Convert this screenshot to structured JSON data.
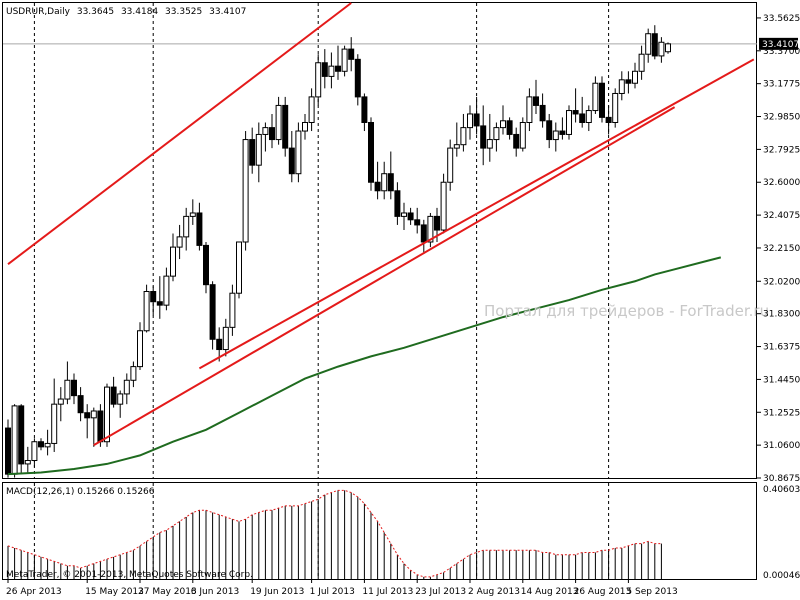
{
  "header": {
    "symbol": "USDRUR,Daily",
    "open": "33.3645",
    "high": "33.4184",
    "low": "33.3525",
    "close": "33.4107"
  },
  "watermark": "Портал для трейдеров - ForTrader.ru",
  "copyright": "MetaTrader, © 2001-2013, MetaQuotes Software Corp.",
  "current_price_label": "33.4107",
  "colors": {
    "channel": "#e41a1a",
    "moving_average": "#1f6b1f",
    "macd": "#000000",
    "signal": "#e41a1a",
    "grid_vertical": "#000000",
    "price_line": "#a8a8a8"
  },
  "chart_data": [
    {
      "type": "candlestick",
      "ylim": [
        30.8675,
        33.65
      ],
      "y_ticks": [
        "33.5625",
        "33.3700",
        "33.1775",
        "32.9850",
        "32.7925",
        "32.6000",
        "32.4075",
        "32.2150",
        "32.0200",
        "31.8300",
        "31.6375",
        "31.4450",
        "31.2525",
        "31.0600",
        "30.8675"
      ],
      "x_ticks": [
        "26 Apr 2013",
        "15 May 2013",
        "27 May 2013",
        "6 Jun 2013",
        "19 Jun 2013",
        "1 Jul 2013",
        "11 Jul 2013",
        "23 Jul 2013",
        "2 Aug 2013",
        "14 Aug 2013",
        "26 Aug 2013",
        "5 Sep 2013"
      ],
      "x_tick_bar_index": [
        0,
        12,
        20,
        28,
        37,
        46,
        54,
        62,
        70,
        78,
        86,
        94
      ],
      "gridline_bar_index": [
        4,
        22,
        47,
        71,
        91
      ],
      "candles": [
        {
          "o": 31.16,
          "h": 31.21,
          "l": 30.87,
          "c": 30.89
        },
        {
          "o": 30.89,
          "h": 31.3,
          "l": 30.87,
          "c": 31.29
        },
        {
          "o": 31.29,
          "h": 31.3,
          "l": 30.89,
          "c": 30.95
        },
        {
          "o": 30.95,
          "h": 31.05,
          "l": 30.9,
          "c": 30.97
        },
        {
          "o": 30.97,
          "h": 31.1,
          "l": 30.93,
          "c": 31.08
        },
        {
          "o": 31.08,
          "h": 31.1,
          "l": 31.03,
          "c": 31.05
        },
        {
          "o": 31.05,
          "h": 31.15,
          "l": 31.0,
          "c": 31.07
        },
        {
          "o": 31.07,
          "h": 31.45,
          "l": 31.02,
          "c": 31.3
        },
        {
          "o": 31.3,
          "h": 31.4,
          "l": 31.2,
          "c": 31.33
        },
        {
          "o": 31.33,
          "h": 31.55,
          "l": 31.3,
          "c": 31.44
        },
        {
          "o": 31.44,
          "h": 31.48,
          "l": 31.3,
          "c": 31.35
        },
        {
          "o": 31.35,
          "h": 31.4,
          "l": 31.2,
          "c": 31.25
        },
        {
          "o": 31.25,
          "h": 31.3,
          "l": 31.1,
          "c": 31.22
        },
        {
          "o": 31.22,
          "h": 31.28,
          "l": 31.05,
          "c": 31.26
        },
        {
          "o": 31.26,
          "h": 31.3,
          "l": 31.05,
          "c": 31.08
        },
        {
          "o": 31.08,
          "h": 31.42,
          "l": 31.05,
          "c": 31.4
        },
        {
          "o": 31.4,
          "h": 31.46,
          "l": 31.28,
          "c": 31.3
        },
        {
          "o": 31.3,
          "h": 31.38,
          "l": 31.22,
          "c": 31.36
        },
        {
          "o": 31.36,
          "h": 31.48,
          "l": 31.3,
          "c": 31.44
        },
        {
          "o": 31.44,
          "h": 31.55,
          "l": 31.4,
          "c": 31.52
        },
        {
          "o": 31.52,
          "h": 31.78,
          "l": 31.5,
          "c": 31.73
        },
        {
          "o": 31.73,
          "h": 32.0,
          "l": 31.72,
          "c": 31.96
        },
        {
          "o": 31.96,
          "h": 31.99,
          "l": 31.82,
          "c": 31.9
        },
        {
          "o": 31.9,
          "h": 32.05,
          "l": 31.8,
          "c": 31.88
        },
        {
          "o": 31.88,
          "h": 32.1,
          "l": 31.85,
          "c": 32.05
        },
        {
          "o": 32.05,
          "h": 32.3,
          "l": 32.02,
          "c": 32.22
        },
        {
          "o": 32.22,
          "h": 32.35,
          "l": 32.15,
          "c": 32.28
        },
        {
          "o": 32.28,
          "h": 32.45,
          "l": 32.2,
          "c": 32.4
        },
        {
          "o": 32.4,
          "h": 32.5,
          "l": 32.35,
          "c": 32.42
        },
        {
          "o": 32.42,
          "h": 32.48,
          "l": 32.2,
          "c": 32.23
        },
        {
          "o": 32.23,
          "h": 32.25,
          "l": 31.95,
          "c": 32.0
        },
        {
          "o": 32.0,
          "h": 32.02,
          "l": 31.62,
          "c": 31.68
        },
        {
          "o": 31.68,
          "h": 31.75,
          "l": 31.55,
          "c": 31.62
        },
        {
          "o": 31.62,
          "h": 31.8,
          "l": 31.58,
          "c": 31.75
        },
        {
          "o": 31.75,
          "h": 32.0,
          "l": 31.7,
          "c": 31.95
        },
        {
          "o": 31.95,
          "h": 32.25,
          "l": 31.92,
          "c": 32.25
        },
        {
          "o": 32.25,
          "h": 32.9,
          "l": 32.2,
          "c": 32.85
        },
        {
          "o": 32.85,
          "h": 32.92,
          "l": 32.65,
          "c": 32.7
        },
        {
          "o": 32.7,
          "h": 32.95,
          "l": 32.6,
          "c": 32.88
        },
        {
          "o": 32.88,
          "h": 32.95,
          "l": 32.78,
          "c": 32.92
        },
        {
          "o": 32.92,
          "h": 33.0,
          "l": 32.8,
          "c": 32.85
        },
        {
          "o": 32.85,
          "h": 33.1,
          "l": 32.82,
          "c": 33.05
        },
        {
          "o": 33.05,
          "h": 33.1,
          "l": 32.75,
          "c": 32.8
        },
        {
          "o": 32.8,
          "h": 32.9,
          "l": 32.6,
          "c": 32.65
        },
        {
          "o": 32.65,
          "h": 32.95,
          "l": 32.6,
          "c": 32.9
        },
        {
          "o": 32.9,
          "h": 33.0,
          "l": 32.85,
          "c": 32.95
        },
        {
          "o": 32.95,
          "h": 33.15,
          "l": 32.9,
          "c": 33.1
        },
        {
          "o": 33.1,
          "h": 33.35,
          "l": 33.05,
          "c": 33.3
        },
        {
          "o": 33.3,
          "h": 33.38,
          "l": 33.15,
          "c": 33.22
        },
        {
          "o": 33.22,
          "h": 33.36,
          "l": 33.15,
          "c": 33.28
        },
        {
          "o": 33.28,
          "h": 33.4,
          "l": 33.2,
          "c": 33.25
        },
        {
          "o": 33.25,
          "h": 33.4,
          "l": 33.22,
          "c": 33.38
        },
        {
          "o": 33.38,
          "h": 33.45,
          "l": 33.25,
          "c": 33.32
        },
        {
          "o": 33.32,
          "h": 33.35,
          "l": 33.05,
          "c": 33.1
        },
        {
          "o": 33.1,
          "h": 33.12,
          "l": 32.9,
          "c": 32.95
        },
        {
          "o": 32.95,
          "h": 32.98,
          "l": 32.55,
          "c": 32.6
        },
        {
          "o": 32.6,
          "h": 32.72,
          "l": 32.5,
          "c": 32.55
        },
        {
          "o": 32.55,
          "h": 32.72,
          "l": 32.5,
          "c": 32.65
        },
        {
          "o": 32.65,
          "h": 32.78,
          "l": 32.5,
          "c": 32.55
        },
        {
          "o": 32.55,
          "h": 32.6,
          "l": 32.35,
          "c": 32.4
        },
        {
          "o": 32.4,
          "h": 32.48,
          "l": 32.32,
          "c": 32.42
        },
        {
          "o": 32.42,
          "h": 32.45,
          "l": 32.35,
          "c": 32.38
        },
        {
          "o": 32.38,
          "h": 32.45,
          "l": 32.3,
          "c": 32.35
        },
        {
          "o": 32.35,
          "h": 32.38,
          "l": 32.18,
          "c": 32.25
        },
        {
          "o": 32.25,
          "h": 32.42,
          "l": 32.22,
          "c": 32.4
        },
        {
          "o": 32.4,
          "h": 32.45,
          "l": 32.25,
          "c": 32.32
        },
        {
          "o": 32.32,
          "h": 32.65,
          "l": 32.3,
          "c": 32.6
        },
        {
          "o": 32.6,
          "h": 32.85,
          "l": 32.55,
          "c": 32.8
        },
        {
          "o": 32.8,
          "h": 32.95,
          "l": 32.75,
          "c": 32.82
        },
        {
          "o": 32.82,
          "h": 33.0,
          "l": 32.78,
          "c": 32.92
        },
        {
          "o": 32.92,
          "h": 33.05,
          "l": 32.85,
          "c": 33.0
        },
        {
          "o": 33.0,
          "h": 33.1,
          "l": 32.88,
          "c": 32.93
        },
        {
          "o": 32.93,
          "h": 33.05,
          "l": 32.7,
          "c": 32.8
        },
        {
          "o": 32.8,
          "h": 33.0,
          "l": 32.72,
          "c": 32.85
        },
        {
          "o": 32.85,
          "h": 32.95,
          "l": 32.78,
          "c": 32.92
        },
        {
          "o": 32.92,
          "h": 33.05,
          "l": 32.88,
          "c": 32.96
        },
        {
          "o": 32.96,
          "h": 32.98,
          "l": 32.85,
          "c": 32.88
        },
        {
          "o": 32.88,
          "h": 32.92,
          "l": 32.75,
          "c": 32.8
        },
        {
          "o": 32.8,
          "h": 32.98,
          "l": 32.78,
          "c": 32.95
        },
        {
          "o": 32.95,
          "h": 33.15,
          "l": 32.9,
          "c": 33.1
        },
        {
          "o": 33.1,
          "h": 33.2,
          "l": 33.0,
          "c": 33.05
        },
        {
          "o": 33.05,
          "h": 33.12,
          "l": 32.92,
          "c": 32.96
        },
        {
          "o": 32.96,
          "h": 33.0,
          "l": 32.8,
          "c": 32.85
        },
        {
          "o": 32.85,
          "h": 32.95,
          "l": 32.78,
          "c": 32.9
        },
        {
          "o": 32.9,
          "h": 32.98,
          "l": 32.85,
          "c": 32.88
        },
        {
          "o": 32.88,
          "h": 33.05,
          "l": 32.85,
          "c": 33.02
        },
        {
          "o": 33.02,
          "h": 33.15,
          "l": 32.95,
          "c": 33.0
        },
        {
          "o": 33.0,
          "h": 33.1,
          "l": 32.92,
          "c": 32.95
        },
        {
          "o": 32.95,
          "h": 33.05,
          "l": 32.9,
          "c": 33.02
        },
        {
          "o": 33.02,
          "h": 33.22,
          "l": 33.0,
          "c": 33.18
        },
        {
          "o": 33.18,
          "h": 33.22,
          "l": 32.95,
          "c": 32.98
        },
        {
          "o": 32.98,
          "h": 33.05,
          "l": 32.88,
          "c": 32.95
        },
        {
          "o": 32.95,
          "h": 33.15,
          "l": 32.92,
          "c": 33.12
        },
        {
          "o": 33.12,
          "h": 33.25,
          "l": 33.08,
          "c": 33.2
        },
        {
          "o": 33.2,
          "h": 33.25,
          "l": 33.12,
          "c": 33.18
        },
        {
          "o": 33.18,
          "h": 33.3,
          "l": 33.15,
          "c": 33.25
        },
        {
          "o": 33.25,
          "h": 33.4,
          "l": 33.2,
          "c": 33.35
        },
        {
          "o": 33.35,
          "h": 33.5,
          "l": 33.3,
          "c": 33.47
        },
        {
          "o": 33.47,
          "h": 33.52,
          "l": 33.32,
          "c": 33.34
        },
        {
          "o": 33.34,
          "h": 33.45,
          "l": 33.3,
          "c": 33.42
        },
        {
          "o": 33.3645,
          "h": 33.4184,
          "l": 33.3525,
          "c": 33.4107
        }
      ],
      "channel_lines": [
        {
          "from": [
            0,
            32.12
          ],
          "to": [
            52,
            33.65
          ]
        },
        {
          "from": [
            13,
            31.06
          ],
          "to": [
            101,
            33.04
          ]
        },
        {
          "from": [
            29,
            31.51
          ],
          "to": [
            113,
            33.32
          ]
        }
      ],
      "moving_average_points": [
        [
          0,
          30.89
        ],
        [
          5,
          30.9
        ],
        [
          10,
          30.92
        ],
        [
          15,
          30.95
        ],
        [
          20,
          31.0
        ],
        [
          25,
          31.08
        ],
        [
          30,
          31.15
        ],
        [
          35,
          31.25
        ],
        [
          40,
          31.35
        ],
        [
          45,
          31.45
        ],
        [
          50,
          31.52
        ],
        [
          55,
          31.58
        ],
        [
          60,
          31.63
        ],
        [
          65,
          31.69
        ],
        [
          70,
          31.75
        ],
        [
          75,
          31.81
        ],
        [
          80,
          31.86
        ],
        [
          85,
          31.91
        ],
        [
          90,
          31.97
        ],
        [
          95,
          32.02
        ],
        [
          98,
          32.06
        ],
        [
          101,
          32.09
        ],
        [
          106,
          32.14
        ],
        [
          108,
          32.16
        ]
      ]
    },
    {
      "type": "histogram",
      "label": "MACD(12,26,1) 0.15266 0.15266",
      "ylim": [
        0.000464,
        0.40603
      ],
      "y_ticks": [
        "0.40603",
        "0.000464"
      ],
      "values": [
        0.15,
        0.14,
        0.13,
        0.12,
        0.11,
        0.1,
        0.09,
        0.08,
        0.07,
        0.06,
        0.06,
        0.05,
        0.06,
        0.07,
        0.08,
        0.09,
        0.1,
        0.11,
        0.12,
        0.13,
        0.15,
        0.17,
        0.19,
        0.21,
        0.22,
        0.24,
        0.26,
        0.28,
        0.3,
        0.31,
        0.31,
        0.3,
        0.29,
        0.28,
        0.27,
        0.26,
        0.27,
        0.29,
        0.3,
        0.31,
        0.31,
        0.32,
        0.33,
        0.33,
        0.33,
        0.34,
        0.35,
        0.36,
        0.38,
        0.39,
        0.4,
        0.4,
        0.39,
        0.37,
        0.34,
        0.3,
        0.26,
        0.21,
        0.16,
        0.11,
        0.07,
        0.04,
        0.02,
        0.01,
        0.01,
        0.02,
        0.03,
        0.05,
        0.07,
        0.09,
        0.11,
        0.12,
        0.13,
        0.13,
        0.13,
        0.13,
        0.13,
        0.13,
        0.13,
        0.13,
        0.13,
        0.12,
        0.12,
        0.11,
        0.11,
        0.11,
        0.11,
        0.12,
        0.12,
        0.12,
        0.13,
        0.13,
        0.14,
        0.14,
        0.15,
        0.16,
        0.16,
        0.17,
        0.16,
        0.16
      ]
    }
  ]
}
